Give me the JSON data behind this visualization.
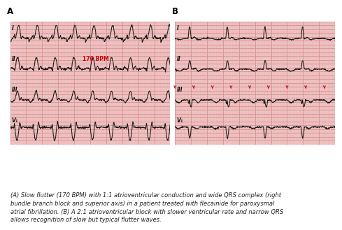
{
  "title_A": "A",
  "title_B": "B",
  "label_bpm": "170 BPM",
  "label_bpm_color": "#cc0000",
  "bg_color": "#f2c8c8",
  "grid_major_color": "#d49090",
  "grid_minor_color": "#e8b0b0",
  "ecg_color": "#1a1a1a",
  "caption": "(A) Slow flutter (170 BPM) with 1:1 atrioventricular conduction and wide QRS complex (right\nbundle branch block and superior axis) in a patient treated with flecainide for paroxysmal\natrial fibrillation. (B) A 2:1 atrioventricular block with slower ventricular rate and narrow QRS\nallows recognition of slow but typical flutter waves.",
  "caption_fontsize": 6.0,
  "arrow_color": "#bb2222",
  "panel_bg": "#ffffff",
  "label_fontsize": 5.5,
  "title_fontsize": 8.5
}
